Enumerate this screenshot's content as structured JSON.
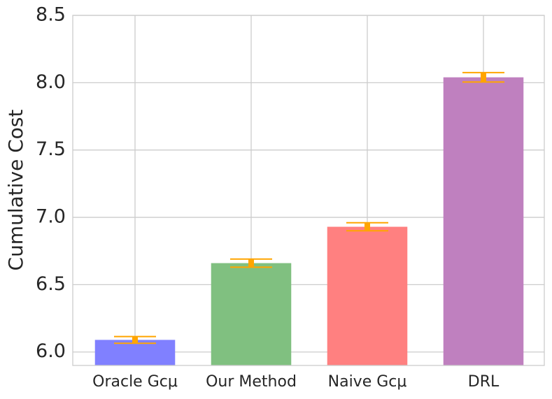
{
  "chart_data": {
    "type": "bar",
    "y_label": "Cumulative Cost",
    "categories": [
      "Oracle Gcμ",
      "Our Method",
      "Naive Gcμ",
      "DRL"
    ],
    "values": [
      6.09,
      6.66,
      6.93,
      8.04
    ],
    "errors": [
      0.025,
      0.03,
      0.03,
      0.035
    ],
    "colors": [
      "#8080ff",
      "#80c080",
      "#ff8080",
      "#bf80bf"
    ],
    "error_color": "#ffa500",
    "ylim": [
      5.9,
      8.5
    ],
    "yticks": [
      {
        "value": 6,
        "label": "6.0"
      },
      6.5,
      {
        "value": 7,
        "label": "7.0"
      },
      7.5,
      {
        "value": 8,
        "label": "8.0"
      },
      8.5
    ],
    "grid": true
  }
}
